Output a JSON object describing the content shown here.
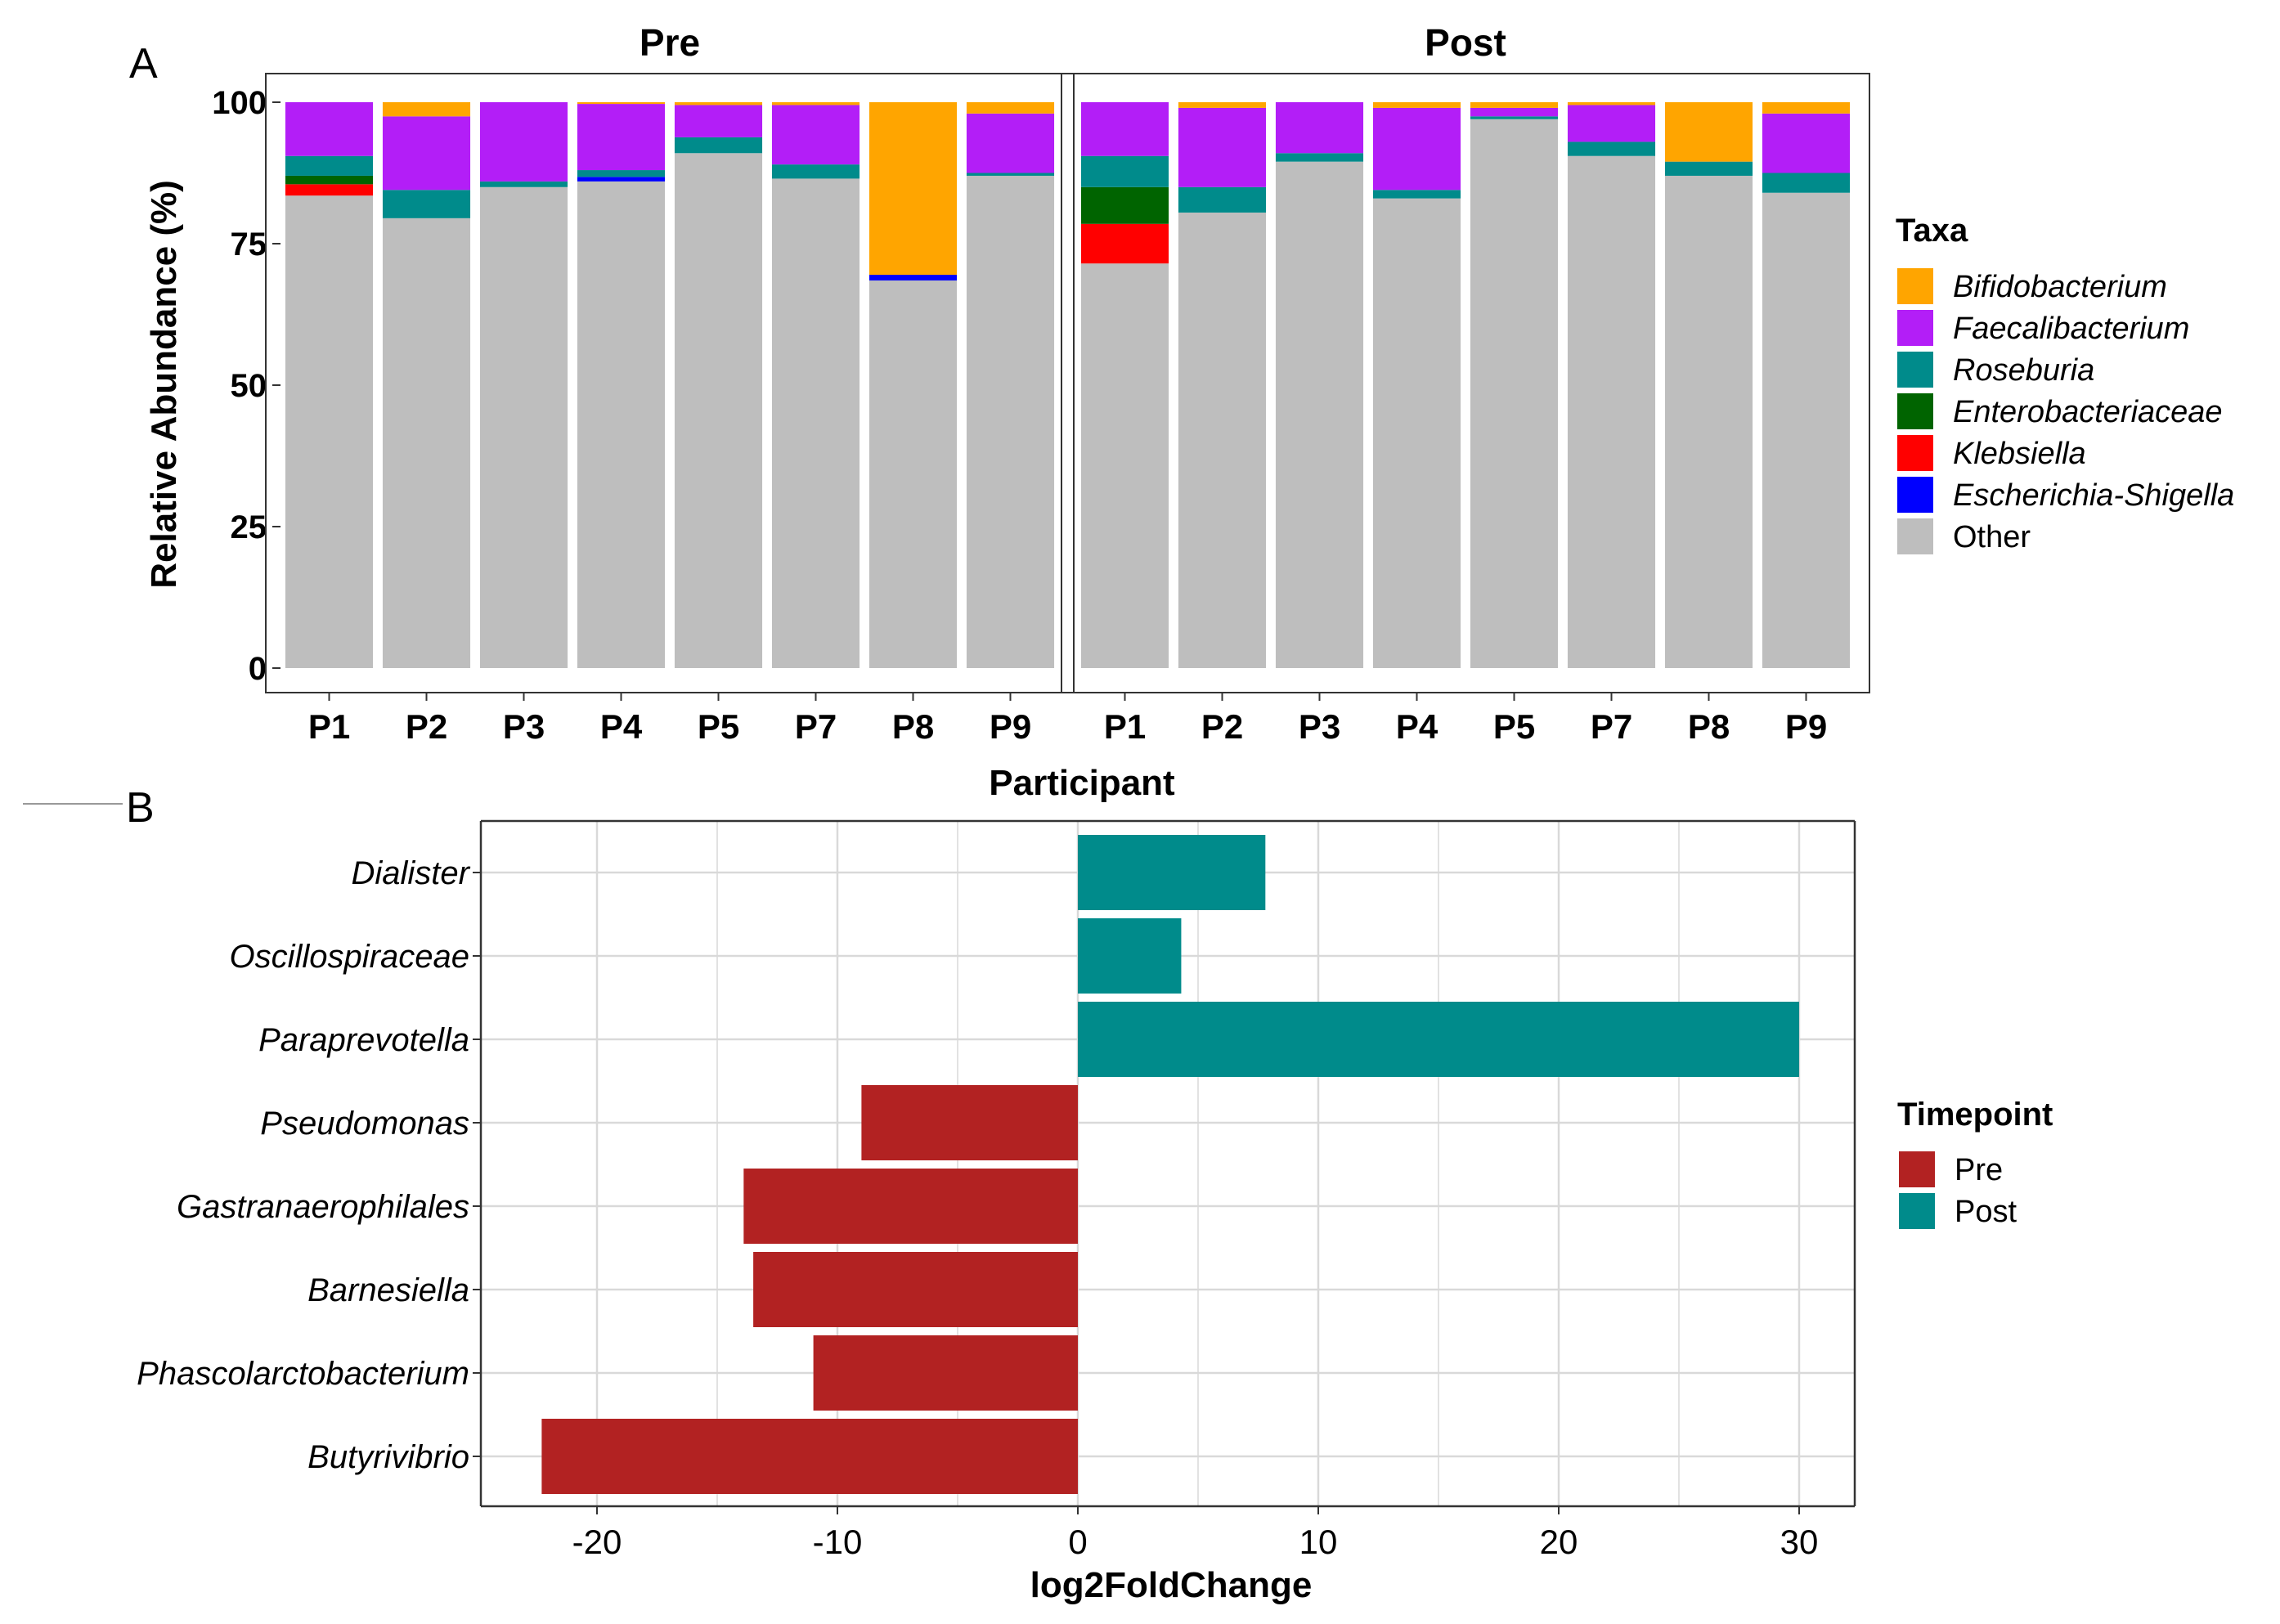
{
  "panel_a_label": "A",
  "panel_b_label": "B",
  "chart_data": [
    {
      "type": "bar",
      "stacked": true,
      "ylabel": "Relative Abundance (%)",
      "xlabel": "Participant",
      "ylim": [
        0,
        100
      ],
      "yticks": [
        0,
        25,
        50,
        75,
        100
      ],
      "legend_title": "Taxa",
      "legend_position": "right",
      "grid": false,
      "taxa": [
        {
          "name": "Bifidobacterium",
          "color": "#FFA500",
          "italic": true
        },
        {
          "name": "Faecalibacterium",
          "color": "#B31EF7",
          "italic": true
        },
        {
          "name": "Roseburia",
          "color": "#008B8B",
          "italic": true
        },
        {
          "name": "Enterobacteriaceae",
          "color": "#006400",
          "italic": true
        },
        {
          "name": "Klebsiella",
          "color": "#FF0000",
          "italic": true
        },
        {
          "name": "Escherichia-Shigella",
          "color": "#0000FF",
          "italic": true
        },
        {
          "name": "Other",
          "color": "#BEBEBE",
          "italic": false
        }
      ],
      "stack_order_bottom_to_top": [
        "Other",
        "Escherichia-Shigella",
        "Klebsiella",
        "Enterobacteriaceae",
        "Roseburia",
        "Faecalibacterium",
        "Bifidobacterium"
      ],
      "facets": [
        {
          "name": "Pre",
          "participants": [
            "P1",
            "P2",
            "P3",
            "P4",
            "P5",
            "P7",
            "P8",
            "P9"
          ],
          "values": {
            "Other": [
              83.5,
              79.5,
              85,
              86,
              91,
              86.5,
              68.5,
              87
            ],
            "Escherichia-Shigella": [
              0,
              0,
              0,
              0.8,
              0,
              0,
              1,
              0
            ],
            "Klebsiella": [
              2,
              0,
              0,
              0,
              0,
              0,
              0,
              0
            ],
            "Enterobacteriaceae": [
              1.5,
              0,
              0,
              0,
              0,
              0,
              0,
              0
            ],
            "Roseburia": [
              3.5,
              5,
              1,
              1.2,
              2.8,
              2.5,
              0,
              0.5
            ],
            "Faecalibacterium": [
              9.5,
              13,
              14,
              11.7,
              5.7,
              10.5,
              0,
              10.5
            ],
            "Bifidobacterium": [
              0,
              2.5,
              0,
              0.3,
              0.5,
              0.5,
              30.5,
              2
            ]
          }
        },
        {
          "name": "Post",
          "participants": [
            "P1",
            "P2",
            "P3",
            "P4",
            "P5",
            "P7",
            "P8",
            "P9"
          ],
          "values": {
            "Other": [
              71.5,
              80.5,
              89.5,
              83,
              97,
              90.5,
              87,
              84
            ],
            "Escherichia-Shigella": [
              0,
              0,
              0,
              0,
              0,
              0,
              0,
              0
            ],
            "Klebsiella": [
              7,
              0,
              0,
              0,
              0,
              0,
              0,
              0
            ],
            "Enterobacteriaceae": [
              6.5,
              0,
              0,
              0,
              0,
              0,
              0,
              0
            ],
            "Roseburia": [
              5.5,
              4.5,
              1.5,
              1.5,
              0.5,
              2.5,
              2.5,
              3.5
            ],
            "Faecalibacterium": [
              9.5,
              14,
              9,
              14.5,
              1.5,
              6.5,
              0,
              10.5
            ],
            "Bifidobacterium": [
              0,
              1,
              0,
              1,
              1,
              0.5,
              10.5,
              2
            ]
          }
        }
      ]
    },
    {
      "type": "bar",
      "orientation": "horizontal",
      "xlabel": "log2FoldChange",
      "ylabel": "",
      "xlim": [
        -25,
        32
      ],
      "xticks": [
        -20,
        -10,
        0,
        10,
        20,
        30
      ],
      "grid": true,
      "legend_title": "Timepoint",
      "legend_position": "right",
      "groups": [
        {
          "name": "Pre",
          "color": "#B22222"
        },
        {
          "name": "Post",
          "color": "#008B8B"
        }
      ],
      "categories": [
        "Dialister",
        "Oscillospiraceae",
        "Paraprevotella",
        "Pseudomonas",
        "Gastranaerophilales",
        "Barnesiella",
        "Phascolarctobacterium",
        "Butyrivibrio"
      ],
      "values": [
        7.8,
        4.3,
        30,
        -9,
        -13.9,
        -13.5,
        -11,
        -22.3
      ],
      "group_of_each": [
        "Post",
        "Post",
        "Post",
        "Pre",
        "Pre",
        "Pre",
        "Pre",
        "Pre"
      ]
    }
  ]
}
